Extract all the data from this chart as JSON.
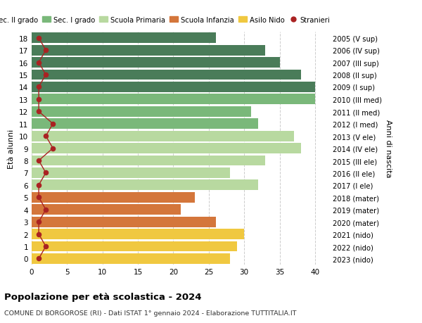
{
  "ages": [
    18,
    17,
    16,
    15,
    14,
    13,
    12,
    11,
    10,
    9,
    8,
    7,
    6,
    5,
    4,
    3,
    2,
    1,
    0
  ],
  "years": [
    "2005 (V sup)",
    "2006 (IV sup)",
    "2007 (III sup)",
    "2008 (II sup)",
    "2009 (I sup)",
    "2010 (III med)",
    "2011 (II med)",
    "2012 (I med)",
    "2013 (V ele)",
    "2014 (IV ele)",
    "2015 (III ele)",
    "2016 (II ele)",
    "2017 (I ele)",
    "2018 (mater)",
    "2019 (mater)",
    "2020 (mater)",
    "2021 (nido)",
    "2022 (nido)",
    "2023 (nido)"
  ],
  "values": [
    26,
    33,
    35,
    38,
    40,
    40,
    31,
    32,
    37,
    38,
    33,
    28,
    32,
    23,
    21,
    26,
    30,
    29,
    28
  ],
  "stranieri": [
    1,
    2,
    1,
    2,
    1,
    1,
    1,
    3,
    2,
    3,
    1,
    2,
    1,
    1,
    2,
    1,
    1,
    2,
    1
  ],
  "bar_colors": [
    "#4a7c59",
    "#4a7c59",
    "#4a7c59",
    "#4a7c59",
    "#4a7c59",
    "#7ab87a",
    "#7ab87a",
    "#7ab87a",
    "#b8d9a0",
    "#b8d9a0",
    "#b8d9a0",
    "#b8d9a0",
    "#b8d9a0",
    "#d4763b",
    "#d4763b",
    "#d4763b",
    "#f0c840",
    "#f0c840",
    "#f0c840"
  ],
  "color_sec2": "#4a7c59",
  "color_sec1": "#7ab87a",
  "color_prim": "#b8d9a0",
  "color_inf": "#d4763b",
  "color_nido": "#f0c840",
  "color_stranieri": "#aa2222",
  "title": "Popolazione per età scolastica - 2024",
  "subtitle": "COMUNE DI BORGOROSE (RI) - Dati ISTAT 1° gennaio 2024 - Elaborazione TUTTITALIA.IT",
  "xlabel_age": "Età alunni",
  "ylabel_birth": "Anni di nascita",
  "xlim": [
    0,
    42
  ],
  "background_color": "#ffffff",
  "grid_color": "#cccccc"
}
